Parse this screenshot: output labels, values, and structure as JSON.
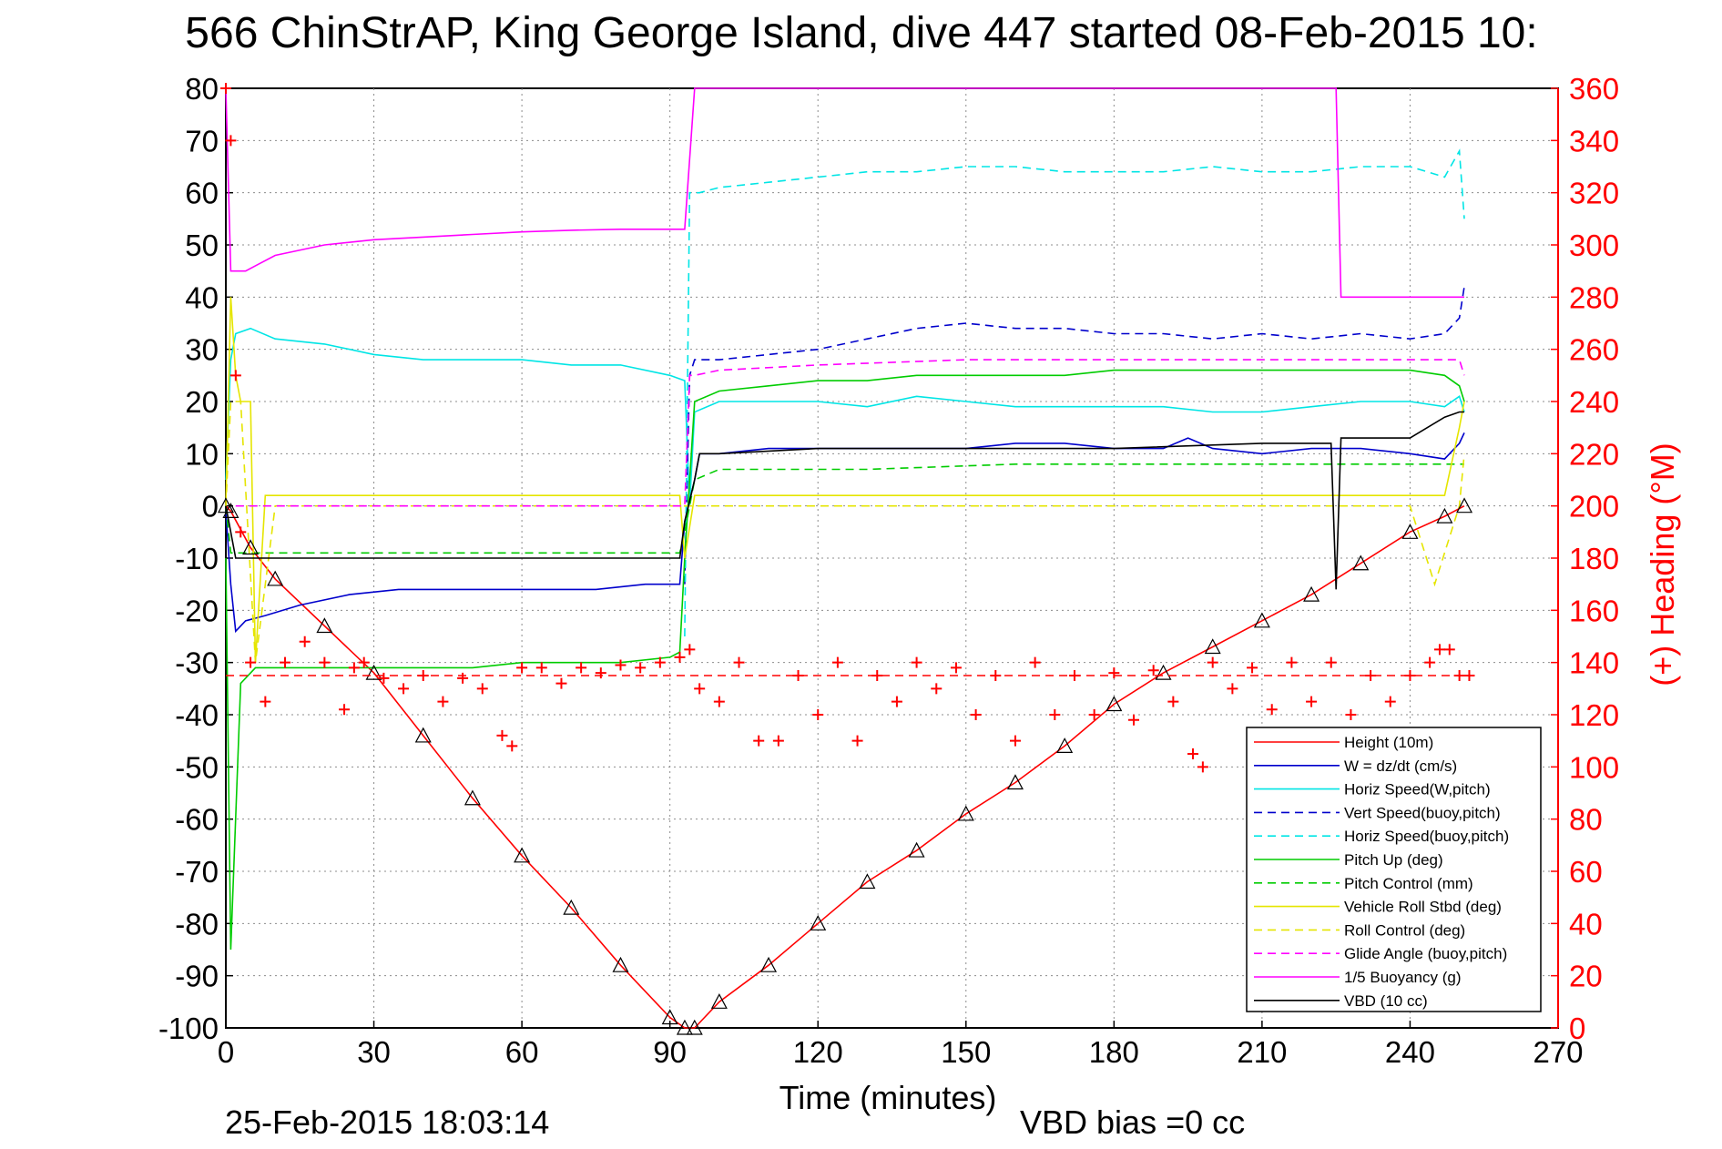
{
  "chart_data": {
    "type": "line",
    "title": "566 ChinStrAP, King George Island, dive 447 started 08-Feb-2015 10:",
    "xlabel": "Time (minutes)",
    "ylabel_right": "(+) Heading (°M)",
    "xlim": [
      0,
      270
    ],
    "ylim": [
      -100,
      80
    ],
    "ylim_right": [
      0,
      360
    ],
    "x_ticks": [
      "0",
      "30",
      "60",
      "90",
      "120",
      "150",
      "180",
      "210",
      "240",
      "270"
    ],
    "y_ticks": [
      "80",
      "70",
      "60",
      "50",
      "40",
      "30",
      "20",
      "10",
      "0",
      "-10",
      "-20",
      "-30",
      "-40",
      "-50",
      "-60",
      "-70",
      "-80",
      "-90",
      "-100"
    ],
    "y_right_ticks": [
      "360",
      "340",
      "320",
      "300",
      "280",
      "260",
      "240",
      "220",
      "200",
      "180",
      "160",
      "140",
      "120",
      "100",
      "80",
      "60",
      "40",
      "20",
      "0"
    ],
    "grid": true,
    "legend_position": "bottom-right",
    "footer_left": "25-Feb-2015 18:03:14",
    "footer_right": "VBD bias =0 cc",
    "colors": {
      "red": "#ff0000",
      "blue": "#0000cc",
      "cyan": "#00e5e5",
      "green": "#00cc00",
      "yellow": "#e5e500",
      "magenta": "#ff00ff",
      "black": "#000000"
    },
    "series": [
      {
        "name": "Height (10m)",
        "color": "#ff0000",
        "style": "solid",
        "x": [
          0,
          1,
          5,
          10,
          20,
          30,
          40,
          50,
          60,
          70,
          80,
          90,
          93,
          95,
          100,
          110,
          120,
          130,
          140,
          150,
          160,
          170,
          180,
          190,
          200,
          210,
          220,
          230,
          240,
          247,
          251
        ],
        "y": [
          0,
          -1,
          -8,
          -14,
          -23,
          -32,
          -44,
          -56,
          -67,
          -77,
          -88,
          -98,
          -100,
          -100,
          -95,
          -88,
          -80,
          -72,
          -66,
          -59,
          -53,
          -46,
          -38,
          -32,
          -27,
          -22,
          -17,
          -11,
          -5,
          -2,
          0
        ]
      },
      {
        "name": "W = dz/dt (cm/s)",
        "color": "#0000cc",
        "style": "solid",
        "x": [
          0,
          1,
          2,
          4,
          8,
          15,
          25,
          35,
          45,
          55,
          65,
          75,
          85,
          92,
          93,
          95,
          96,
          100,
          110,
          120,
          130,
          140,
          150,
          160,
          170,
          180,
          190,
          195,
          200,
          210,
          220,
          230,
          240,
          247,
          250,
          251
        ],
        "y": [
          -1,
          -15,
          -24,
          -22,
          -21,
          -19,
          -17,
          -16,
          -16,
          -16,
          -16,
          -16,
          -15,
          -15,
          -3,
          5,
          10,
          10,
          11,
          11,
          11,
          11,
          11,
          12,
          12,
          11,
          11,
          13,
          11,
          10,
          11,
          11,
          10,
          9,
          12,
          14
        ]
      },
      {
        "name": "Horiz Speed(W,pitch)",
        "color": "#00e5e5",
        "style": "solid",
        "x": [
          0,
          1,
          2,
          5,
          10,
          20,
          30,
          40,
          50,
          60,
          70,
          80,
          90,
          93,
          94,
          95,
          100,
          110,
          120,
          130,
          140,
          150,
          160,
          170,
          180,
          190,
          200,
          210,
          220,
          230,
          240,
          247,
          250,
          251
        ],
        "y": [
          5,
          28,
          33,
          34,
          32,
          31,
          29,
          28,
          28,
          28,
          27,
          27,
          25,
          24,
          0,
          18,
          20,
          20,
          20,
          19,
          21,
          20,
          19,
          19,
          19,
          19,
          18,
          18,
          19,
          20,
          20,
          19,
          21,
          18
        ]
      },
      {
        "name": "Vert Speed(buoy,pitch)",
        "color": "#0000cc",
        "style": "dash",
        "x": [
          93,
          94,
          95,
          100,
          110,
          120,
          130,
          140,
          150,
          160,
          170,
          180,
          190,
          200,
          210,
          220,
          230,
          240,
          247,
          250,
          251
        ],
        "y": [
          -15,
          25,
          28,
          28,
          29,
          30,
          32,
          34,
          35,
          34,
          34,
          33,
          33,
          32,
          33,
          32,
          33,
          32,
          33,
          36,
          42
        ]
      },
      {
        "name": "Horiz Speed(buoy,pitch)",
        "color": "#00e5e5",
        "style": "dash",
        "x": [
          93,
          94,
          96,
          100,
          110,
          120,
          130,
          140,
          150,
          160,
          170,
          180,
          190,
          200,
          210,
          220,
          230,
          240,
          247,
          250,
          251
        ],
        "y": [
          -25,
          60,
          60,
          61,
          62,
          63,
          64,
          64,
          65,
          65,
          64,
          64,
          64,
          65,
          64,
          64,
          65,
          65,
          63,
          68,
          55
        ]
      },
      {
        "name": "Pitch Up (deg)",
        "color": "#00cc00",
        "style": "solid",
        "x": [
          0,
          1,
          3,
          6,
          10,
          20,
          30,
          40,
          50,
          60,
          70,
          80,
          90,
          92,
          93,
          95,
          100,
          110,
          120,
          130,
          140,
          150,
          160,
          170,
          180,
          190,
          200,
          210,
          220,
          230,
          240,
          247,
          250,
          251
        ],
        "y": [
          -10,
          -85,
          -34,
          -31,
          -31,
          -31,
          -31,
          -31,
          -31,
          -30,
          -30,
          -30,
          -29,
          -28,
          -10,
          20,
          22,
          23,
          24,
          24,
          25,
          25,
          25,
          25,
          26,
          26,
          26,
          26,
          26,
          26,
          26,
          25,
          23,
          20
        ]
      },
      {
        "name": "Pitch Control (mm)",
        "color": "#00cc00",
        "style": "dash",
        "x": [
          0,
          1,
          2,
          5,
          10,
          30,
          60,
          90,
          92,
          93,
          95,
          100,
          130,
          160,
          190,
          220,
          240,
          250,
          251
        ],
        "y": [
          0,
          -9,
          -9,
          -9,
          -9,
          -9,
          -9,
          -9,
          -9,
          -5,
          5,
          7,
          7,
          8,
          8,
          8,
          8,
          8,
          8
        ]
      },
      {
        "name": "Vehicle Roll Stbd (deg)",
        "color": "#e5e500",
        "style": "solid",
        "x": [
          0,
          1,
          2,
          3,
          5,
          6,
          8,
          10,
          20,
          30,
          40,
          50,
          60,
          70,
          80,
          90,
          92,
          93,
          95,
          100,
          110,
          120,
          130,
          140,
          150,
          160,
          170,
          180,
          190,
          200,
          210,
          220,
          230,
          240,
          247,
          250,
          251
        ],
        "y": [
          0,
          40,
          25,
          20,
          20,
          -30,
          2,
          2,
          2,
          2,
          2,
          2,
          2,
          2,
          2,
          2,
          2,
          -10,
          2,
          2,
          2,
          2,
          2,
          2,
          2,
          2,
          2,
          2,
          2,
          2,
          2,
          2,
          2,
          2,
          2,
          15,
          20
        ]
      },
      {
        "name": "Roll Control (deg)",
        "color": "#e5e500",
        "style": "dash",
        "x": [
          0,
          1,
          3,
          6,
          10,
          30,
          60,
          90,
          93,
          95,
          120,
          150,
          180,
          210,
          240,
          245,
          250,
          251
        ],
        "y": [
          0,
          20,
          20,
          -30,
          0,
          0,
          0,
          0,
          0,
          0,
          0,
          0,
          0,
          0,
          0,
          -15,
          0,
          10
        ]
      },
      {
        "name": "Glide Angle (buoy,pitch)",
        "color": "#ff00ff",
        "style": "dash",
        "x": [
          2,
          10,
          30,
          60,
          90,
          93,
          94,
          95,
          100,
          120,
          150,
          180,
          210,
          240,
          247,
          250,
          251
        ],
        "y": [
          0,
          0,
          0,
          0,
          0,
          0,
          25,
          25,
          26,
          27,
          28,
          28,
          28,
          28,
          28,
          28,
          25
        ]
      },
      {
        "name": "1/5 Buoyancy (g)",
        "color": "#ff00ff",
        "style": "solid",
        "x": [
          0,
          1,
          2,
          4,
          6,
          10,
          20,
          30,
          40,
          50,
          60,
          70,
          80,
          90,
          92,
          93,
          95,
          224,
          225,
          226,
          230,
          240,
          250,
          251
        ],
        "y": [
          80,
          45,
          45,
          45,
          46,
          48,
          50,
          51,
          51.5,
          52,
          52.5,
          52.8,
          53,
          53,
          53,
          53,
          80,
          80,
          80,
          40,
          40,
          40,
          40,
          40
        ]
      },
      {
        "name": "VBD (10 cc)",
        "color": "#000000",
        "style": "solid",
        "x": [
          0,
          1,
          2,
          4,
          10,
          30,
          60,
          90,
          92,
          93,
          95,
          96,
          100,
          120,
          150,
          180,
          210,
          224,
          225,
          226,
          230,
          240,
          247,
          250,
          251
        ],
        "y": [
          0,
          -5,
          -10,
          -10,
          -10,
          -10,
          -10,
          -10,
          -10,
          -3,
          5,
          10,
          10,
          11,
          11,
          11,
          12,
          12,
          -16,
          13,
          13,
          13,
          17,
          18,
          18
        ]
      }
    ],
    "heading_series": {
      "name": "Heading",
      "color": "#ff0000",
      "marker": "+",
      "reference": 135,
      "x": [
        0,
        1,
        2,
        3,
        5,
        8,
        12,
        16,
        20,
        24,
        26,
        28,
        32,
        36,
        40,
        44,
        48,
        52,
        56,
        58,
        60,
        64,
        68,
        72,
        76,
        80,
        84,
        88,
        92,
        94,
        96,
        100,
        104,
        108,
        112,
        116,
        120,
        124,
        128,
        132,
        136,
        140,
        144,
        148,
        152,
        156,
        160,
        164,
        168,
        172,
        176,
        180,
        184,
        188,
        192,
        196,
        198,
        200,
        204,
        208,
        212,
        216,
        220,
        224,
        228,
        232,
        236,
        240,
        244,
        246,
        248,
        250,
        252
      ],
      "y": [
        360,
        340,
        250,
        190,
        140,
        125,
        140,
        148,
        140,
        122,
        138,
        140,
        134,
        130,
        135,
        125,
        134,
        130,
        112,
        108,
        138,
        138,
        132,
        138,
        136,
        139,
        138,
        140,
        142,
        145,
        130,
        125,
        140,
        110,
        110,
        135,
        120,
        140,
        110,
        135,
        125,
        140,
        130,
        138,
        120,
        135,
        110,
        140,
        120,
        135,
        120,
        136,
        118,
        137,
        125,
        105,
        100,
        140,
        130,
        138,
        122,
        140,
        125,
        140,
        120,
        135,
        125,
        135,
        140,
        145,
        145,
        135,
        135
      ]
    }
  }
}
